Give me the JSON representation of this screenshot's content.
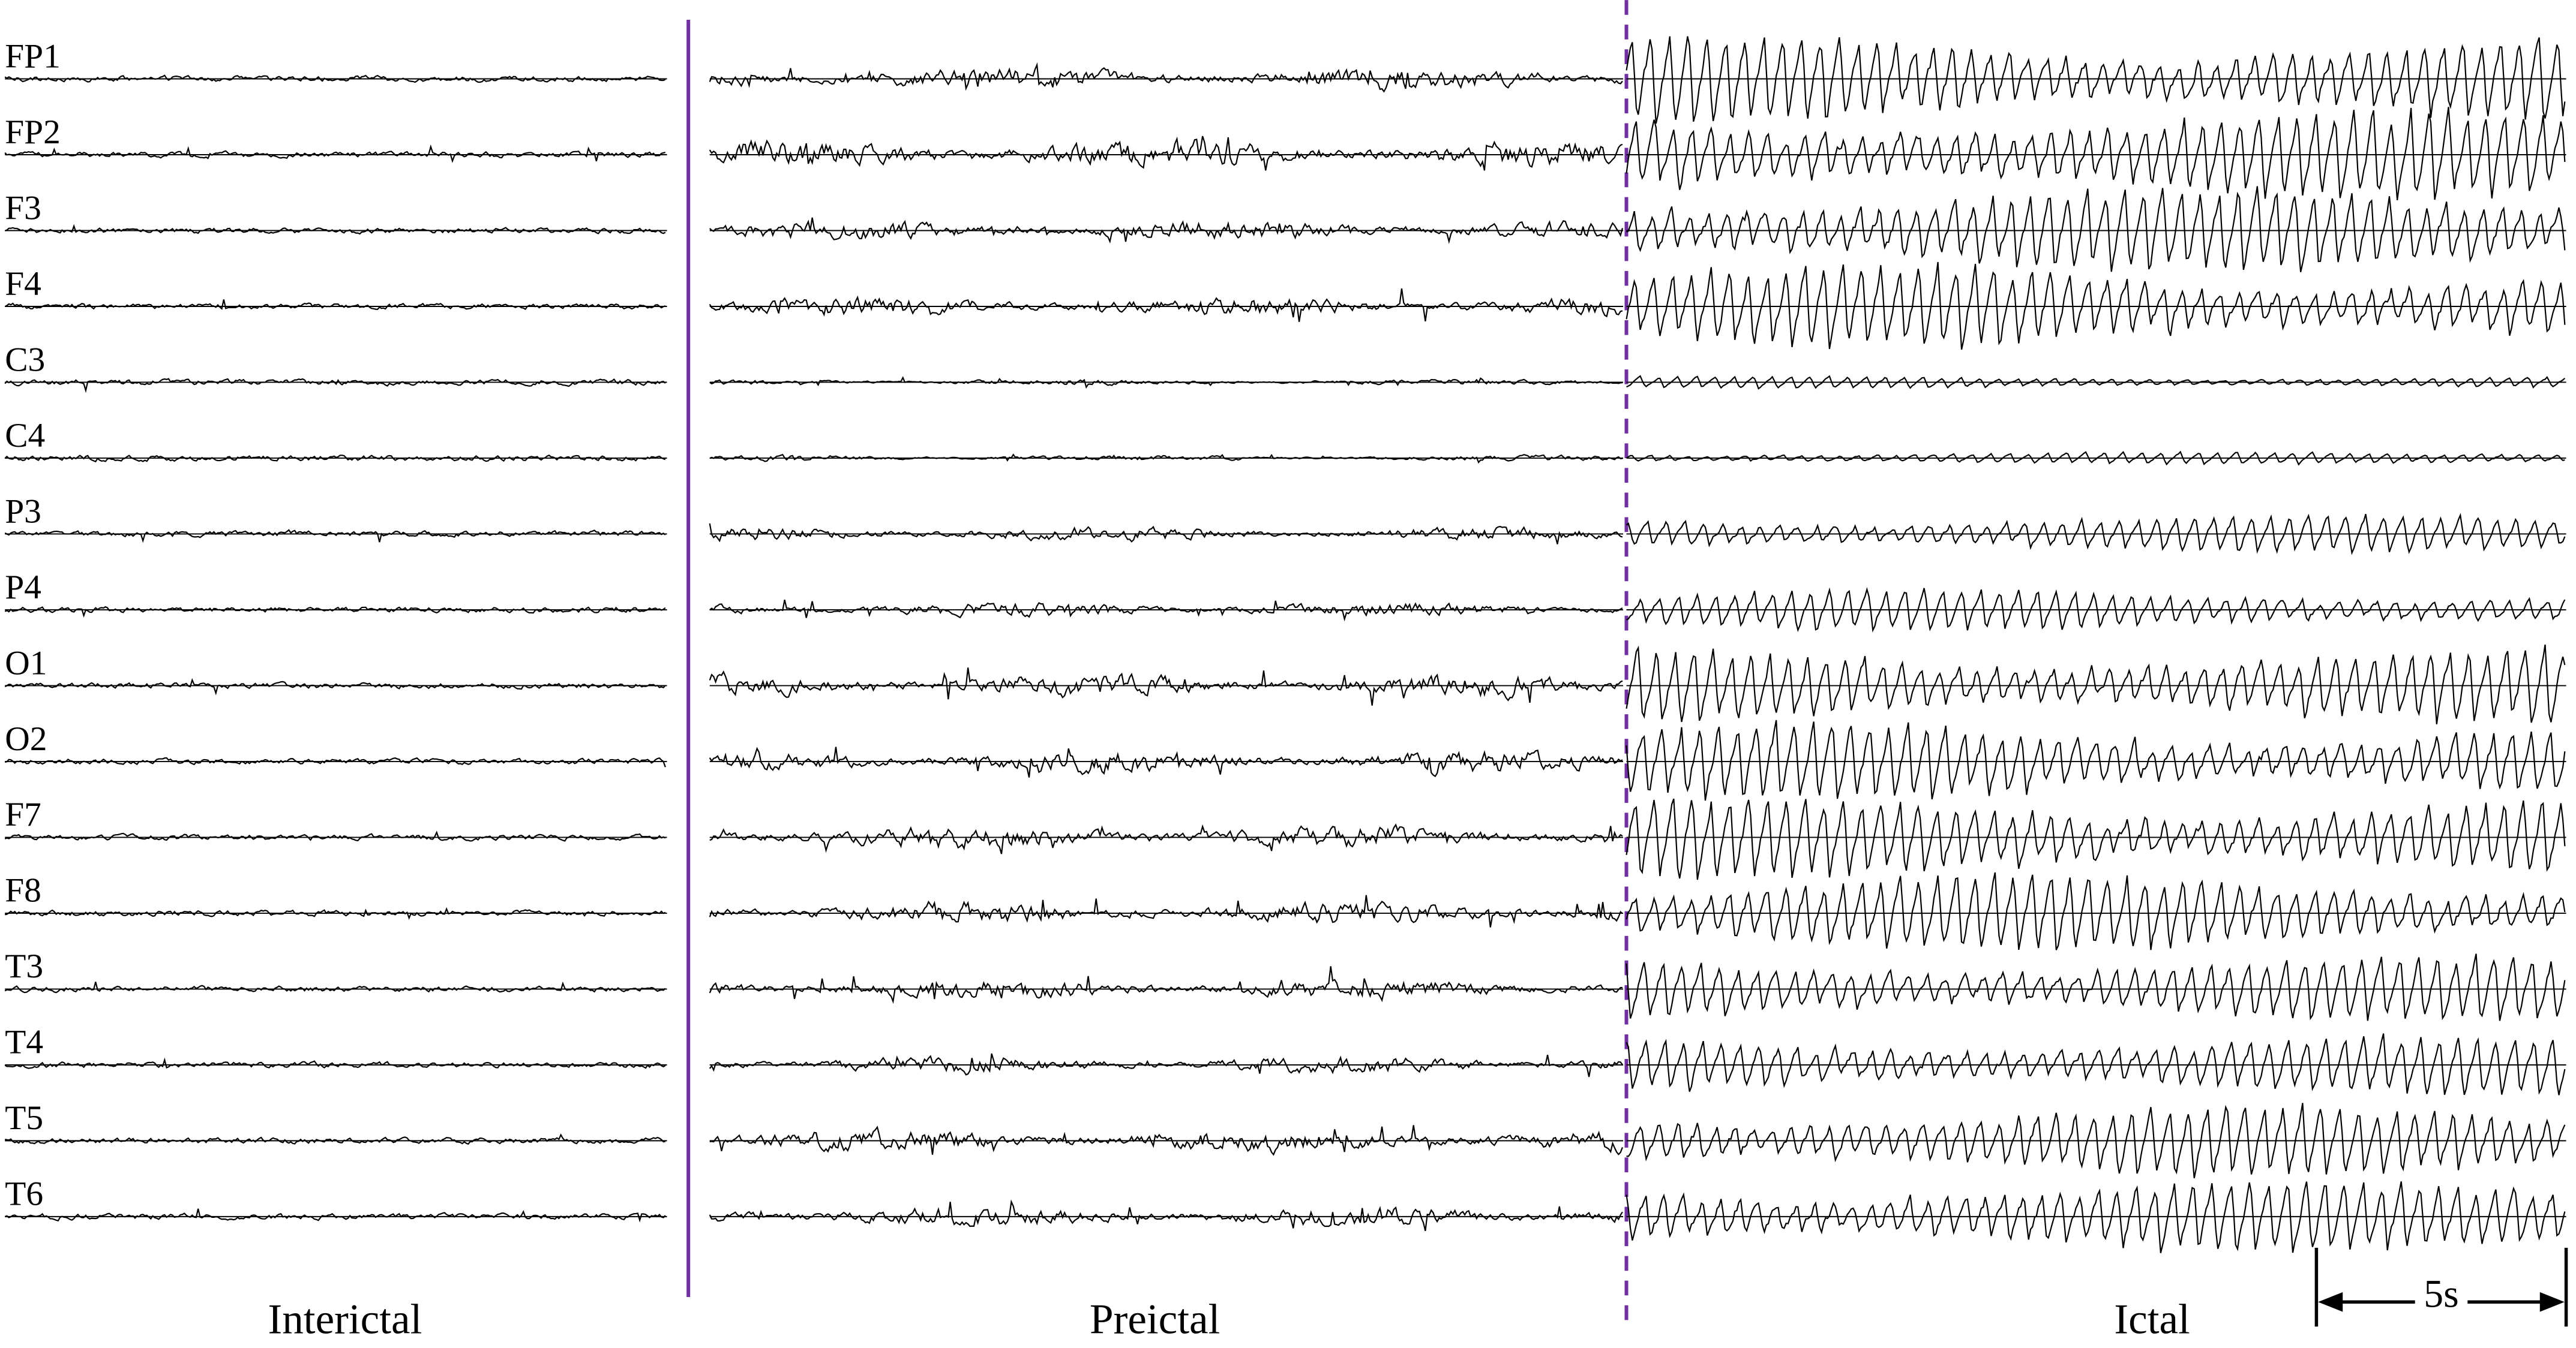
{
  "channels": [
    "FP1",
    "FP2",
    "F3",
    "F4",
    "C3",
    "C4",
    "P3",
    "P4",
    "O1",
    "O2",
    "F7",
    "F8",
    "T3",
    "T4",
    "T5",
    "T6"
  ],
  "sections": [
    "Interictal",
    "Preictal",
    "Ictal"
  ],
  "scale_bar": {
    "label": "5s"
  }
}
